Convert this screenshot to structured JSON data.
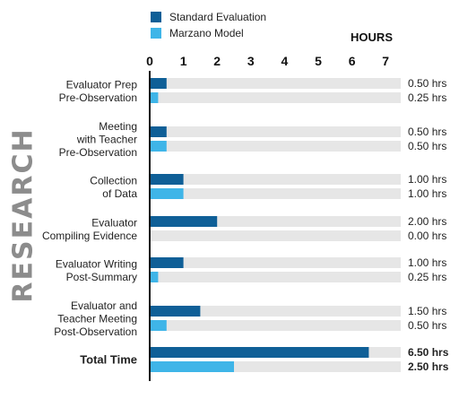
{
  "chart_data": {
    "type": "bar",
    "orientation": "horizontal",
    "title": "",
    "side_label": "RESEARCH",
    "xlabel": "HOURS",
    "xlim": [
      0,
      7
    ],
    "x_ticks": [
      "0",
      "1",
      "2",
      "3",
      "4",
      "5",
      "6",
      "7"
    ],
    "grid": false,
    "legend_position": "top",
    "categories": [
      [
        "Evaluator Prep",
        "Pre-Observation"
      ],
      [
        "Meeting",
        "with Teacher",
        "Pre-Observation"
      ],
      [
        "Collection",
        "of Data"
      ],
      [
        "Evaluator",
        "Compiling Evidence"
      ],
      [
        "Evaluator Writing",
        "Post-Summary"
      ],
      [
        "Evaluator and",
        "Teacher Meeting",
        "Post-Observation"
      ],
      [
        "Total Time"
      ]
    ],
    "series": [
      {
        "name": "Standard Evaluation",
        "color": "#0f5f97",
        "values": [
          0.5,
          0.5,
          1.0,
          2.0,
          1.0,
          1.5,
          6.5
        ],
        "value_labels": [
          "0.50 hrs",
          "0.50 hrs",
          "1.00 hrs",
          "2.00 hrs",
          "1.00 hrs",
          "1.50 hrs",
          "6.50 hrs"
        ]
      },
      {
        "name": "Marzano Model",
        "color": "#3fb5e8",
        "values": [
          0.25,
          0.5,
          1.0,
          0.0,
          0.25,
          0.5,
          2.5
        ],
        "value_labels": [
          "0.25 hrs",
          "0.50 hrs",
          "1.00 hrs",
          "0.00 hrs",
          "0.25 hrs",
          "0.50 hrs",
          "2.50 hrs"
        ]
      }
    ],
    "track_color": "#e6e6e6",
    "axis_color": "#111111"
  }
}
